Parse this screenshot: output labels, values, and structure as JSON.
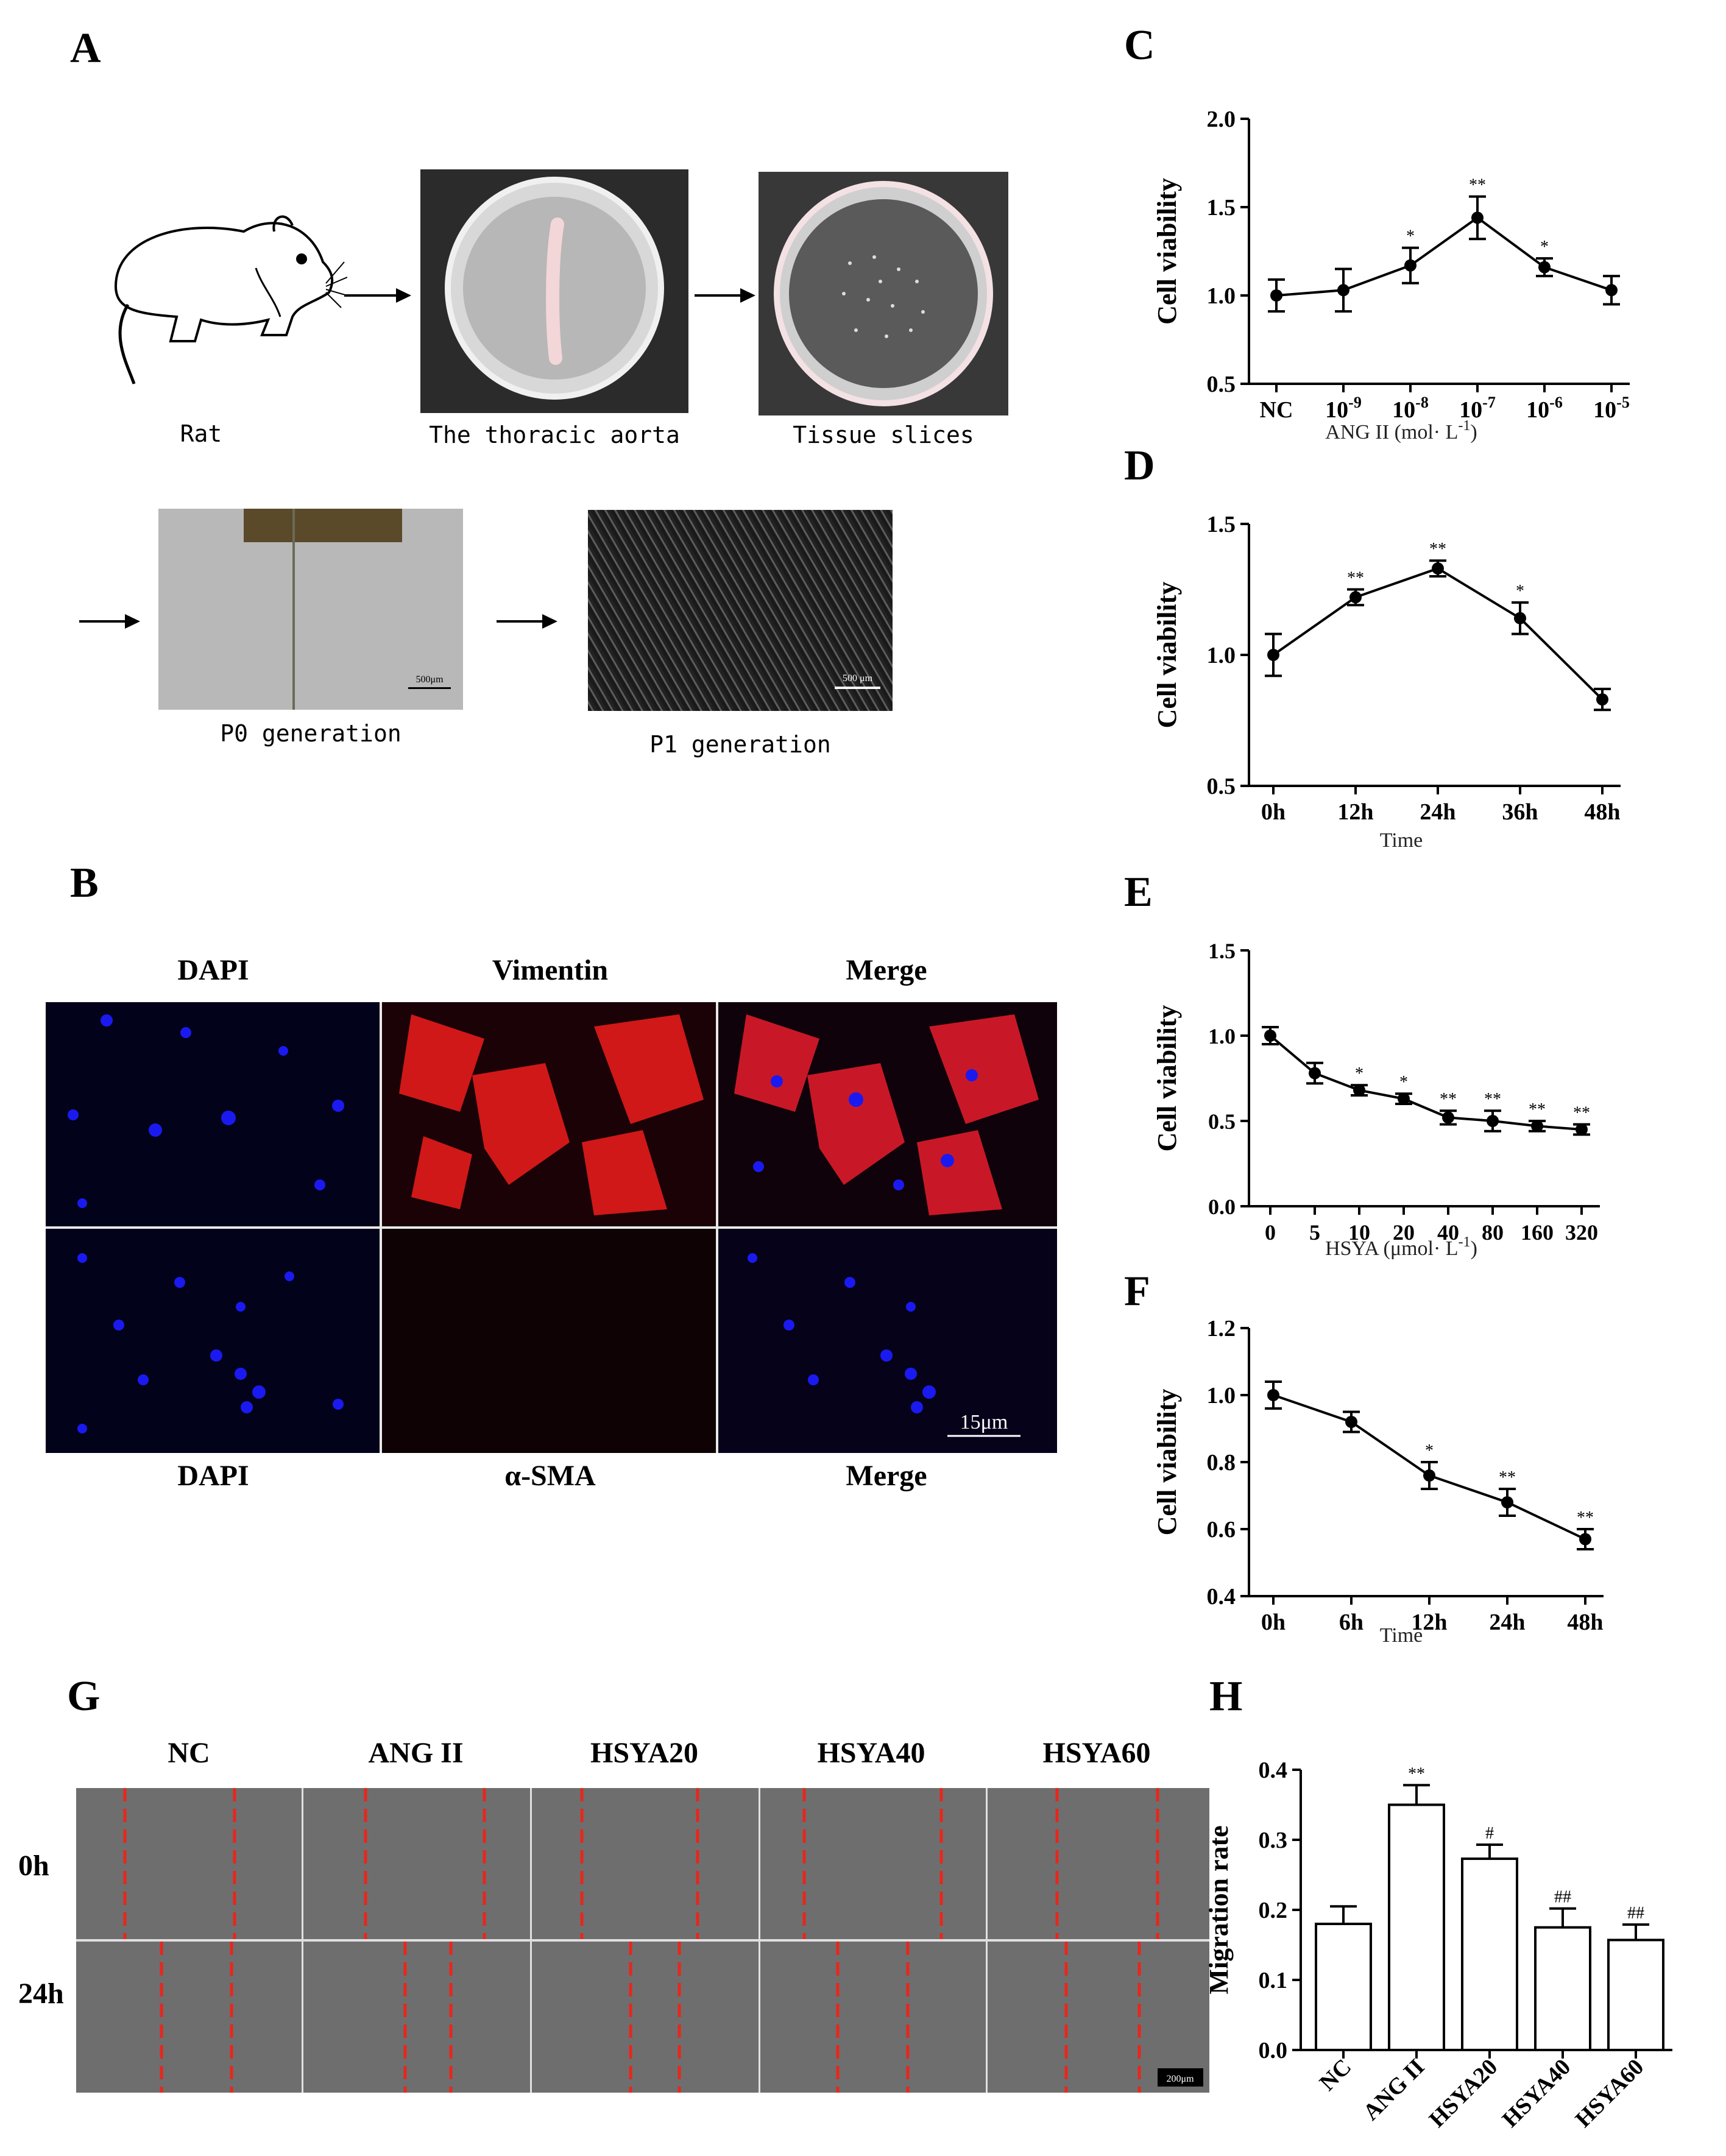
{
  "panel_labels": {
    "a": "A",
    "b": "B",
    "c": "C",
    "d": "D",
    "e": "E",
    "f": "F",
    "g": "G",
    "h": "H"
  },
  "panel_a": {
    "captions": {
      "rat": "Rat",
      "aorta": "The thoracic aorta",
      "slices": "Tissue slices",
      "p0": "P0 generation",
      "p1": "P1 generation"
    },
    "scalebars": {
      "p0": "500μm",
      "p1": "500 μm"
    }
  },
  "panel_b": {
    "top_headers": [
      "DAPI",
      "Vimentin",
      "Merge"
    ],
    "bottom_headers": [
      "DAPI",
      "α-SMA",
      "Merge"
    ],
    "scalebar": "15μm"
  },
  "panel_g": {
    "columns": [
      "NC",
      "ANG II",
      "HSYA20",
      "HSYA40",
      "HSYA60"
    ],
    "rows": [
      "0h",
      "24h"
    ],
    "scalebar": "200μm"
  },
  "colors": {
    "dapi": "#1a1af0",
    "vimentin": "#e01818",
    "scratch_line": "#e8261c",
    "micro_bg": "#6e6e6e"
  },
  "chart_data": [
    {
      "id": "C",
      "type": "line",
      "xlabel_parts": [
        "ANG II (mol· L",
        "-1",
        ")"
      ],
      "ylabel": "Cell viability",
      "categories": [
        {
          "b": "NC",
          "e": ""
        },
        {
          "b": "10",
          "e": "-9"
        },
        {
          "b": "10",
          "e": "-8"
        },
        {
          "b": "10",
          "e": "-7"
        },
        {
          "b": "10",
          "e": "-6"
        },
        {
          "b": "10",
          "e": "-5"
        }
      ],
      "values": [
        1.0,
        1.03,
        1.17,
        1.44,
        1.16,
        1.03
      ],
      "errors": [
        0.09,
        0.12,
        0.1,
        0.12,
        0.05,
        0.08
      ],
      "sig": [
        "",
        "",
        "*",
        "**",
        "*",
        ""
      ],
      "ylim": [
        0.5,
        2.0
      ],
      "yticks": [
        "0.5",
        "1.0",
        "1.5",
        "2.0"
      ]
    },
    {
      "id": "D",
      "type": "line",
      "xlabel_parts": [
        "Time",
        "",
        ""
      ],
      "ylabel": "Cell viability",
      "categories": [
        {
          "b": "0h",
          "e": ""
        },
        {
          "b": "12h",
          "e": ""
        },
        {
          "b": "24h",
          "e": ""
        },
        {
          "b": "36h",
          "e": ""
        },
        {
          "b": "48h",
          "e": ""
        }
      ],
      "values": [
        1.0,
        1.22,
        1.33,
        1.14,
        0.83
      ],
      "errors": [
        0.08,
        0.03,
        0.03,
        0.06,
        0.04
      ],
      "sig": [
        "",
        "**",
        "**",
        "*",
        ""
      ],
      "ylim": [
        0.5,
        1.5
      ],
      "yticks": [
        "0.5",
        "1.0",
        "1.5"
      ]
    },
    {
      "id": "E",
      "type": "line",
      "xlabel_parts": [
        "HSYA (μmol· L",
        "-1",
        ")"
      ],
      "ylabel": "Cell viability",
      "categories": [
        {
          "b": "0",
          "e": ""
        },
        {
          "b": "5",
          "e": ""
        },
        {
          "b": "10",
          "e": ""
        },
        {
          "b": "20",
          "e": ""
        },
        {
          "b": "40",
          "e": ""
        },
        {
          "b": "80",
          "e": ""
        },
        {
          "b": "160",
          "e": ""
        },
        {
          "b": "320",
          "e": ""
        }
      ],
      "values": [
        1.0,
        0.78,
        0.68,
        0.63,
        0.52,
        0.5,
        0.47,
        0.45
      ],
      "errors": [
        0.05,
        0.06,
        0.03,
        0.03,
        0.04,
        0.06,
        0.03,
        0.03
      ],
      "sig": [
        "",
        "",
        "*",
        "*",
        "**",
        "**",
        "**",
        "**"
      ],
      "ylim": [
        0.0,
        1.5
      ],
      "yticks": [
        "0.0",
        "0.5",
        "1.0",
        "1.5"
      ]
    },
    {
      "id": "F",
      "type": "line",
      "xlabel_parts": [
        "Time",
        "",
        ""
      ],
      "ylabel": "Cell viability",
      "categories": [
        {
          "b": "0h",
          "e": ""
        },
        {
          "b": "6h",
          "e": ""
        },
        {
          "b": "12h",
          "e": ""
        },
        {
          "b": "24h",
          "e": ""
        },
        {
          "b": "48h",
          "e": ""
        }
      ],
      "values": [
        1.0,
        0.92,
        0.76,
        0.68,
        0.57
      ],
      "errors": [
        0.04,
        0.03,
        0.04,
        0.04,
        0.03
      ],
      "sig": [
        "",
        "",
        "*",
        "**",
        "**"
      ],
      "ylim": [
        0.4,
        1.2
      ],
      "yticks": [
        "0.4",
        "0.6",
        "0.8",
        "1.0",
        "1.2"
      ]
    },
    {
      "id": "H",
      "type": "bar",
      "xlabel_parts": [
        "",
        "",
        ""
      ],
      "ylabel": "Migration rate",
      "categories": [
        {
          "b": "NC",
          "e": ""
        },
        {
          "b": "ANG II",
          "e": ""
        },
        {
          "b": "HSYA20",
          "e": ""
        },
        {
          "b": "HSYA40",
          "e": ""
        },
        {
          "b": "HSYA60",
          "e": ""
        }
      ],
      "values": [
        0.18,
        0.35,
        0.273,
        0.175,
        0.157
      ],
      "errors": [
        0.025,
        0.028,
        0.02,
        0.027,
        0.022
      ],
      "sig": [
        "",
        "**",
        "#",
        "##",
        "##"
      ],
      "ylim": [
        0.0,
        0.4
      ],
      "yticks": [
        "0.0",
        "0.1",
        "0.2",
        "0.3",
        "0.4"
      ]
    }
  ]
}
